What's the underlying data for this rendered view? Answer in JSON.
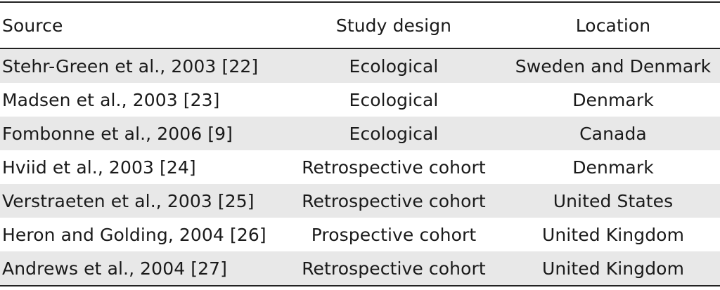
{
  "table": {
    "headers": {
      "source": "Source",
      "study_design": "Study design",
      "location": "Location"
    },
    "rows": [
      {
        "source": "Stehr-Green et al., 2003 [22]",
        "study_design": "Ecological",
        "location": "Sweden and Denmark"
      },
      {
        "source": "Madsen et al., 2003 [23]",
        "study_design": "Ecological",
        "location": "Denmark"
      },
      {
        "source": "Fombonne et al., 2006 [9]",
        "study_design": "Ecological",
        "location": "Canada"
      },
      {
        "source": "Hviid et al., 2003 [24]",
        "study_design": "Retrospective cohort",
        "location": "Denmark"
      },
      {
        "source": "Verstraeten et al., 2003 [25]",
        "study_design": "Retrospective cohort",
        "location": "United States"
      },
      {
        "source": "Heron and Golding, 2004 [26]",
        "study_design": "Prospective cohort",
        "location": "United Kingdom"
      },
      {
        "source": "Andrews et al., 2004 [27]",
        "study_design": "Retrospective cohort",
        "location": "United Kingdom"
      }
    ]
  }
}
